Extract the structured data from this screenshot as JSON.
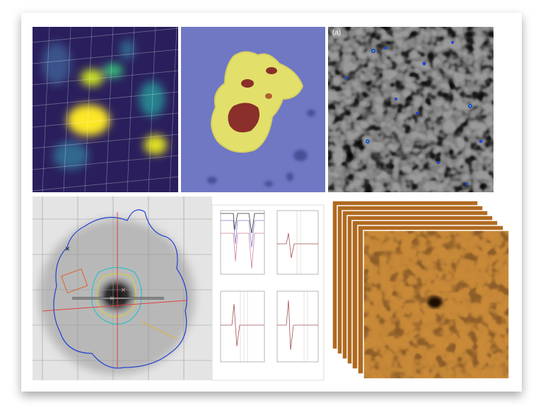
{
  "top_right_panel": {
    "label": "(a)"
  }
}
